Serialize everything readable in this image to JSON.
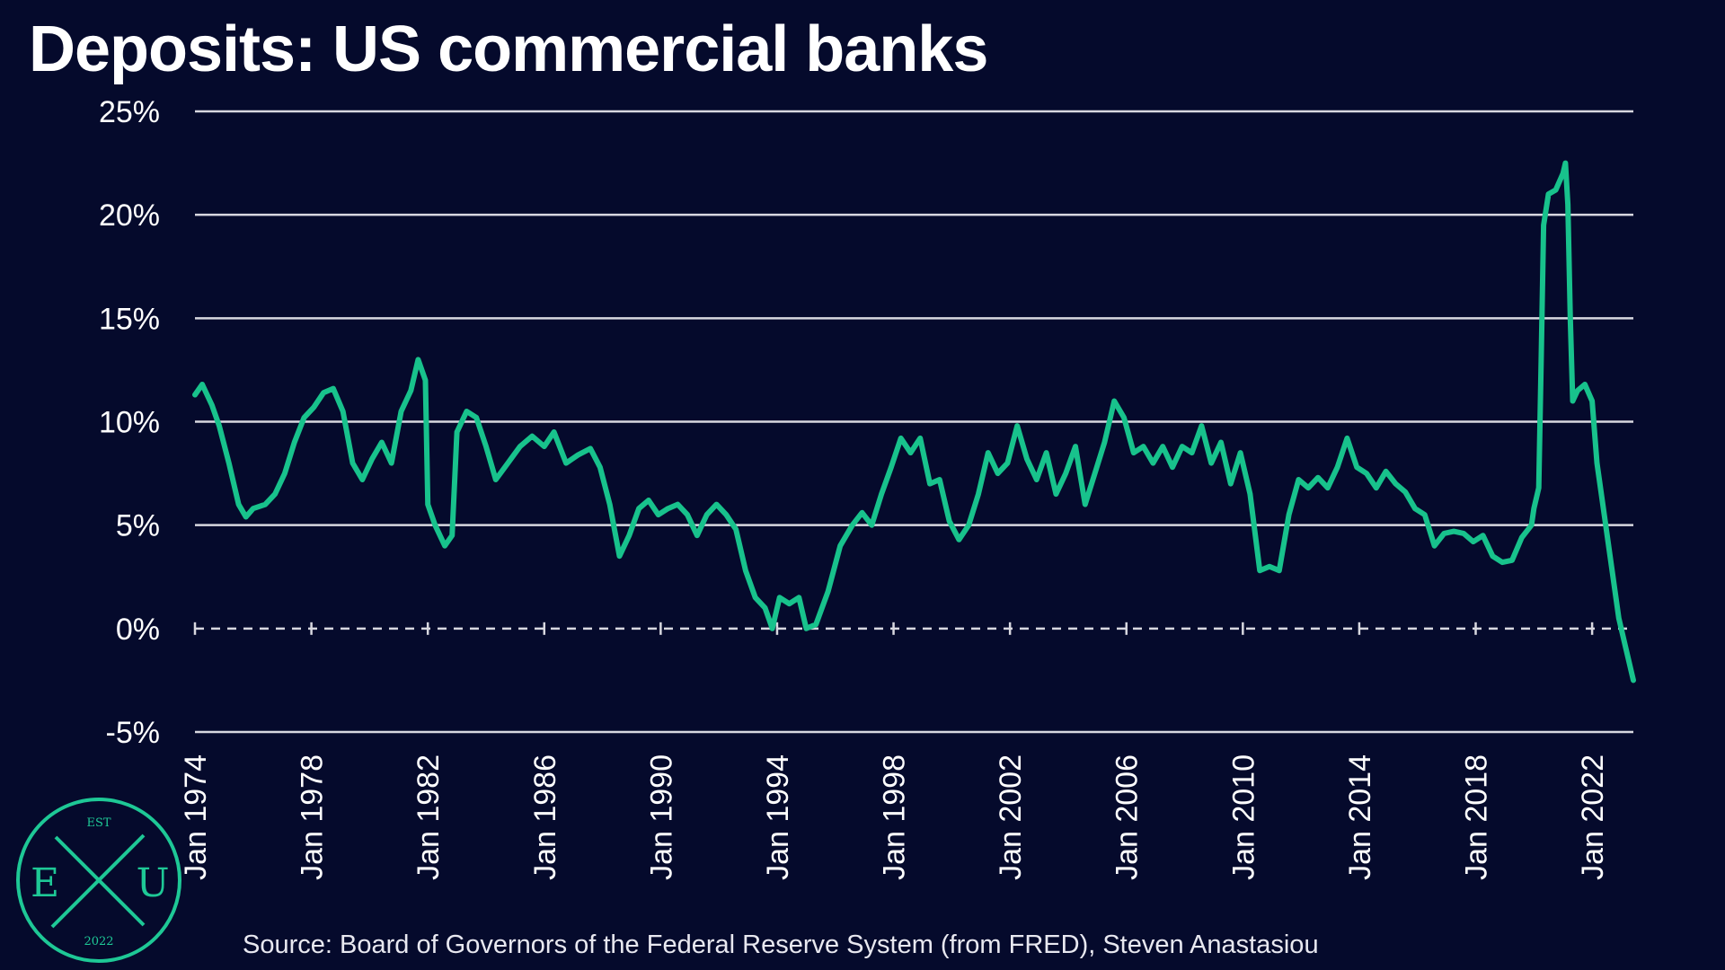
{
  "colors": {
    "background": "#050a2c",
    "line": "#18c28c",
    "grid": "#d8d8e0",
    "text": "#ffffff",
    "logo": "#1ec896"
  },
  "logo": {
    "top": "EST",
    "left": "E",
    "right": "U",
    "bottom": "2022"
  },
  "source": "Source: Board of Governors of the Federal Reserve System (from FRED), Steven Anastasiou",
  "chart_data": {
    "type": "line",
    "title": "Deposits: US commercial banks",
    "xlabel": "",
    "ylabel": "",
    "y_unit": "%",
    "ylim": [
      -5,
      25
    ],
    "y_ticks": [
      -5,
      0,
      5,
      10,
      15,
      20,
      25
    ],
    "y_tick_labels": [
      "-5%",
      "0%",
      "5%",
      "10%",
      "15%",
      "20%",
      "25%"
    ],
    "x_range": [
      "Jan 1974",
      "Jun 2023"
    ],
    "x_ticks": [
      "Jan 1974",
      "Jan 1978",
      "Jan 1982",
      "Jan 1986",
      "Jan 1990",
      "Jan 1994",
      "Jan 1998",
      "Jan 2002",
      "Jan 2006",
      "Jan 2010",
      "Jan 2014",
      "Jan 2018",
      "Jan 2022"
    ],
    "grid": "horizontal",
    "zero_line": "dashed",
    "legend": "none",
    "series": [
      {
        "points": [
          [
            "1974-01",
            11.3
          ],
          [
            "1974-04",
            11.8
          ],
          [
            "1974-08",
            10.8
          ],
          [
            "1974-11",
            9.8
          ],
          [
            "1975-03",
            8.0
          ],
          [
            "1975-07",
            6.0
          ],
          [
            "1975-10",
            5.4
          ],
          [
            "1976-01",
            5.8
          ],
          [
            "1976-06",
            6.0
          ],
          [
            "1976-10",
            6.5
          ],
          [
            "1977-02",
            7.5
          ],
          [
            "1977-06",
            9.0
          ],
          [
            "1977-10",
            10.2
          ],
          [
            "1978-02",
            10.7
          ],
          [
            "1978-06",
            11.4
          ],
          [
            "1978-10",
            11.6
          ],
          [
            "1979-02",
            10.5
          ],
          [
            "1979-06",
            8.0
          ],
          [
            "1979-10",
            7.2
          ],
          [
            "1980-02",
            8.2
          ],
          [
            "1980-06",
            9.0
          ],
          [
            "1980-10",
            8.0
          ],
          [
            "1981-02",
            10.5
          ],
          [
            "1981-06",
            11.5
          ],
          [
            "1981-09",
            13.0
          ],
          [
            "1981-12",
            12.0
          ],
          [
            "1982-01",
            6.0
          ],
          [
            "1982-04",
            5.0
          ],
          [
            "1982-08",
            4.0
          ],
          [
            "1982-11",
            4.5
          ],
          [
            "1983-01",
            9.5
          ],
          [
            "1983-05",
            10.5
          ],
          [
            "1983-09",
            10.2
          ],
          [
            "1984-01",
            8.8
          ],
          [
            "1984-05",
            7.2
          ],
          [
            "1984-10",
            8.0
          ],
          [
            "1985-03",
            8.8
          ],
          [
            "1985-08",
            9.3
          ],
          [
            "1986-01",
            8.8
          ],
          [
            "1986-05",
            9.5
          ],
          [
            "1986-10",
            8.0
          ],
          [
            "1987-03",
            8.4
          ],
          [
            "1987-08",
            8.7
          ],
          [
            "1987-12",
            7.8
          ],
          [
            "1988-04",
            6.0
          ],
          [
            "1988-08",
            3.5
          ],
          [
            "1988-12",
            4.5
          ],
          [
            "1989-04",
            5.8
          ],
          [
            "1989-08",
            6.2
          ],
          [
            "1989-12",
            5.5
          ],
          [
            "1990-04",
            5.8
          ],
          [
            "1990-08",
            6.0
          ],
          [
            "1990-12",
            5.5
          ],
          [
            "1991-04",
            4.5
          ],
          [
            "1991-08",
            5.5
          ],
          [
            "1991-12",
            6.0
          ],
          [
            "1992-04",
            5.5
          ],
          [
            "1992-08",
            4.8
          ],
          [
            "1992-12",
            2.8
          ],
          [
            "1993-04",
            1.5
          ],
          [
            "1993-08",
            1.0
          ],
          [
            "1993-11",
            0.0
          ],
          [
            "1994-02",
            1.5
          ],
          [
            "1994-06",
            1.2
          ],
          [
            "1994-10",
            1.5
          ],
          [
            "1995-01",
            0.0
          ],
          [
            "1995-05",
            0.2
          ],
          [
            "1995-10",
            1.8
          ],
          [
            "1996-03",
            4.0
          ],
          [
            "1996-08",
            5.0
          ],
          [
            "1996-12",
            5.6
          ],
          [
            "1997-04",
            5.0
          ],
          [
            "1997-08",
            6.5
          ],
          [
            "1997-12",
            7.8
          ],
          [
            "1998-04",
            9.2
          ],
          [
            "1998-08",
            8.5
          ],
          [
            "1998-12",
            9.2
          ],
          [
            "1999-04",
            7.0
          ],
          [
            "1999-08",
            7.2
          ],
          [
            "1999-12",
            5.2
          ],
          [
            "2000-04",
            4.3
          ],
          [
            "2000-08",
            5.0
          ],
          [
            "2000-12",
            6.5
          ],
          [
            "2001-04",
            8.5
          ],
          [
            "2001-08",
            7.5
          ],
          [
            "2001-12",
            8.0
          ],
          [
            "2002-04",
            9.8
          ],
          [
            "2002-08",
            8.2
          ],
          [
            "2002-12",
            7.2
          ],
          [
            "2003-04",
            8.5
          ],
          [
            "2003-08",
            6.5
          ],
          [
            "2003-12",
            7.5
          ],
          [
            "2004-04",
            8.8
          ],
          [
            "2004-08",
            6.0
          ],
          [
            "2004-12",
            7.5
          ],
          [
            "2005-04",
            9.0
          ],
          [
            "2005-08",
            11.0
          ],
          [
            "2005-12",
            10.2
          ],
          [
            "2006-04",
            8.5
          ],
          [
            "2006-08",
            8.8
          ],
          [
            "2006-12",
            8.0
          ],
          [
            "2007-04",
            8.8
          ],
          [
            "2007-08",
            7.8
          ],
          [
            "2007-12",
            8.8
          ],
          [
            "2008-04",
            8.5
          ],
          [
            "2008-08",
            9.8
          ],
          [
            "2008-12",
            8.0
          ],
          [
            "2009-04",
            9.0
          ],
          [
            "2009-08",
            7.0
          ],
          [
            "2009-12",
            8.5
          ],
          [
            "2010-04",
            6.5
          ],
          [
            "2010-08",
            2.8
          ],
          [
            "2010-12",
            3.0
          ],
          [
            "2011-04",
            2.8
          ],
          [
            "2011-08",
            5.5
          ],
          [
            "2011-12",
            7.2
          ],
          [
            "2012-04",
            6.8
          ],
          [
            "2012-08",
            7.3
          ],
          [
            "2012-12",
            6.8
          ],
          [
            "2013-04",
            7.8
          ],
          [
            "2013-08",
            9.2
          ],
          [
            "2013-12",
            7.8
          ],
          [
            "2014-04",
            7.5
          ],
          [
            "2014-08",
            6.8
          ],
          [
            "2014-12",
            7.6
          ],
          [
            "2015-04",
            7.0
          ],
          [
            "2015-08",
            6.6
          ],
          [
            "2015-12",
            5.8
          ],
          [
            "2016-04",
            5.5
          ],
          [
            "2016-08",
            4.0
          ],
          [
            "2016-12",
            4.6
          ],
          [
            "2017-04",
            4.7
          ],
          [
            "2017-08",
            4.6
          ],
          [
            "2017-12",
            4.2
          ],
          [
            "2018-04",
            4.5
          ],
          [
            "2018-08",
            3.5
          ],
          [
            "2018-12",
            3.2
          ],
          [
            "2019-04",
            3.3
          ],
          [
            "2019-08",
            4.4
          ],
          [
            "2019-12",
            5.0
          ],
          [
            "2020-01",
            5.8
          ],
          [
            "2020-03",
            6.8
          ],
          [
            "2020-04",
            13.0
          ],
          [
            "2020-05",
            19.5
          ],
          [
            "2020-07",
            21.0
          ],
          [
            "2020-10",
            21.2
          ],
          [
            "2021-01",
            22.0
          ],
          [
            "2021-02",
            22.5
          ],
          [
            "2021-03",
            20.5
          ],
          [
            "2021-04",
            15.0
          ],
          [
            "2021-05",
            11.0
          ],
          [
            "2021-07",
            11.5
          ],
          [
            "2021-10",
            11.8
          ],
          [
            "2022-01",
            11.0
          ],
          [
            "2022-03",
            8.0
          ],
          [
            "2022-06",
            5.5
          ],
          [
            "2022-09",
            3.0
          ],
          [
            "2022-12",
            0.5
          ],
          [
            "2023-03",
            -1.0
          ],
          [
            "2023-06",
            -2.5
          ]
        ]
      }
    ]
  }
}
